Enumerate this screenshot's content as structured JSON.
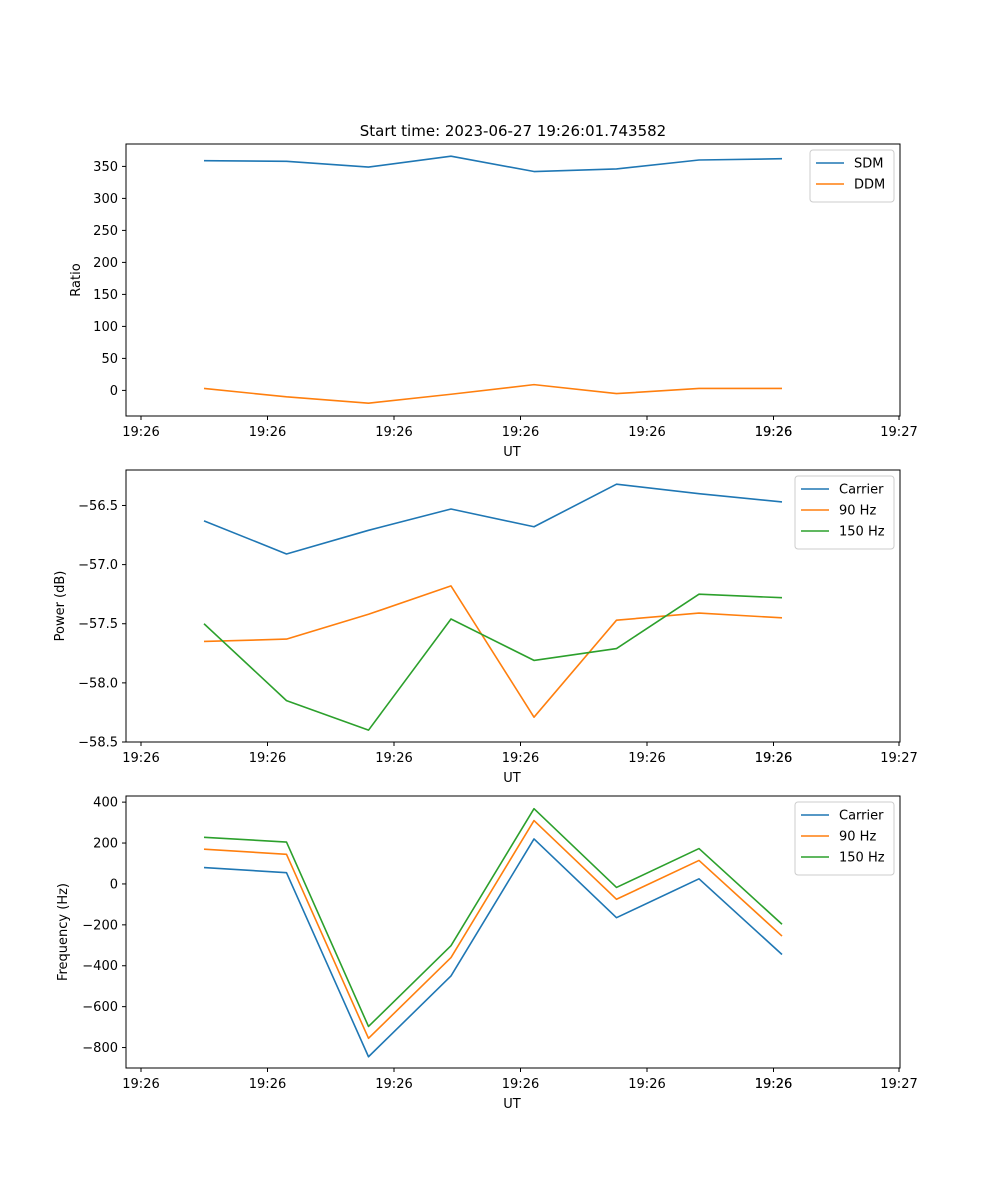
{
  "figure": {
    "title": "Start time: 2023-06-27 19:26:01.743582"
  },
  "chart_data": [
    {
      "type": "line",
      "xlabel": "UT",
      "ylabel": "Ratio",
      "x_tick_labels": [
        "19:26",
        "19:26",
        "19:26",
        "19:26",
        "19:26",
        "19:26",
        "19:26",
        "19:27"
      ],
      "ylim": [
        -40,
        385
      ],
      "y_ticks": [
        0,
        50,
        100,
        150,
        200,
        250,
        300,
        350
      ],
      "legend_position": "top-right",
      "grid": false,
      "series": [
        {
          "name": "SDM",
          "color": "#1f77b4",
          "values": [
            359,
            358,
            349,
            366,
            342,
            346,
            360,
            362
          ]
        },
        {
          "name": "DDM",
          "color": "#ff7f0e",
          "values": [
            3,
            -10,
            -20,
            -6,
            9,
            -5,
            3,
            3
          ]
        }
      ]
    },
    {
      "type": "line",
      "xlabel": "UT",
      "ylabel": "Power (dB)",
      "x_tick_labels": [
        "19:26",
        "19:26",
        "19:26",
        "19:26",
        "19:26",
        "19:26",
        "19:26",
        "19:27"
      ],
      "ylim": [
        -58.5,
        -56.2
      ],
      "y_ticks": [
        -58.5,
        -58.0,
        -57.5,
        -57.0,
        -56.5
      ],
      "y_tick_labels": [
        "−58.5",
        "−58.0",
        "−57.5",
        "−57.0",
        "−56.5"
      ],
      "legend_position": "top-right",
      "grid": false,
      "series": [
        {
          "name": "Carrier",
          "color": "#1f77b4",
          "values": [
            -56.63,
            -56.91,
            -56.71,
            -56.53,
            -56.68,
            -56.32,
            -56.4,
            -56.47
          ]
        },
        {
          "name": "90 Hz",
          "color": "#ff7f0e",
          "values": [
            -57.65,
            -57.63,
            -57.42,
            -57.18,
            -58.29,
            -57.47,
            -57.41,
            -57.45
          ]
        },
        {
          "name": "150 Hz",
          "color": "#2ca02c",
          "values": [
            -57.5,
            -58.15,
            -58.4,
            -57.46,
            -57.81,
            -57.71,
            -57.25,
            -57.28
          ]
        }
      ]
    },
    {
      "type": "line",
      "xlabel": "UT",
      "ylabel": "Frequency (Hz)",
      "x_tick_labels": [
        "19:26",
        "19:26",
        "19:26",
        "19:26",
        "19:26",
        "19:26",
        "19:26",
        "19:27"
      ],
      "ylim": [
        -900,
        430
      ],
      "y_ticks": [
        -800,
        -600,
        -400,
        -200,
        0,
        200,
        400
      ],
      "y_tick_labels": [
        "−800",
        "−600",
        "−400",
        "−200",
        "0",
        "200",
        "400"
      ],
      "legend_position": "top-right",
      "grid": false,
      "series": [
        {
          "name": "Carrier",
          "color": "#1f77b4",
          "values": [
            80,
            55,
            -845,
            -450,
            220,
            -165,
            25,
            -345
          ]
        },
        {
          "name": "90 Hz",
          "color": "#ff7f0e",
          "values": [
            170,
            145,
            -755,
            -360,
            310,
            -75,
            115,
            -255
          ]
        },
        {
          "name": "150 Hz",
          "color": "#2ca02c",
          "values": [
            228,
            205,
            -697,
            -302,
            368,
            -17,
            173,
            -197
          ]
        }
      ]
    }
  ]
}
